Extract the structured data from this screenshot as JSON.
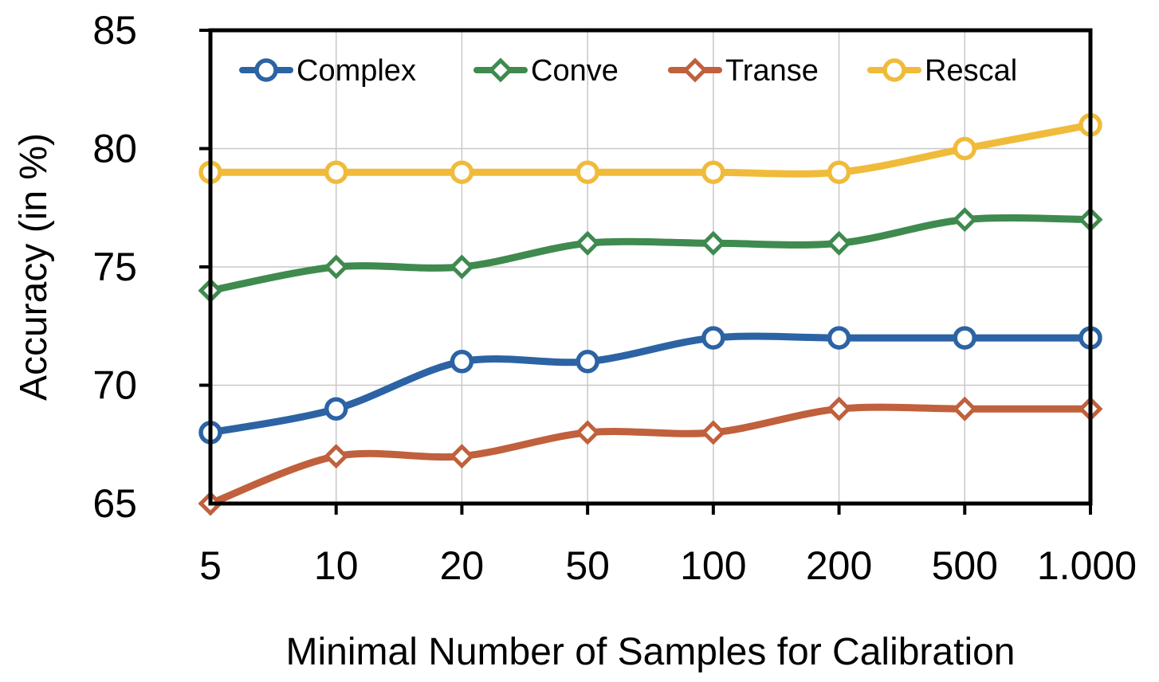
{
  "chart_data": {
    "type": "line",
    "title": "",
    "xlabel": "Minimal Number of Samples for Calibration",
    "ylabel": "Accuracy (in %)",
    "categories": [
      "5",
      "10",
      "20",
      "50",
      "100",
      "200",
      "500",
      "1.000"
    ],
    "ylim": [
      65,
      85
    ],
    "yticks": [
      "65",
      "70",
      "75",
      "80",
      "85"
    ],
    "grid": true,
    "legend_position": "top",
    "series": [
      {
        "name": "Complex",
        "marker": "circle",
        "color": "#2c63a4",
        "values": [
          68,
          69,
          71,
          71,
          72,
          72,
          72,
          72
        ]
      },
      {
        "name": "Conve",
        "marker": "diamond",
        "color": "#3f8a4f",
        "values": [
          74,
          75,
          75,
          76,
          76,
          76,
          77,
          77
        ]
      },
      {
        "name": "Transe",
        "marker": "diamond",
        "color": "#c0603c",
        "values": [
          65,
          67,
          67,
          68,
          68,
          69,
          69,
          69
        ]
      },
      {
        "name": "Rescal",
        "marker": "circle",
        "color": "#f0bb3a",
        "values": [
          79,
          79,
          79,
          79,
          79,
          79,
          80,
          81
        ]
      }
    ],
    "draw_order": [
      "Complex",
      "Conve",
      "Transe",
      "Rescal"
    ]
  }
}
